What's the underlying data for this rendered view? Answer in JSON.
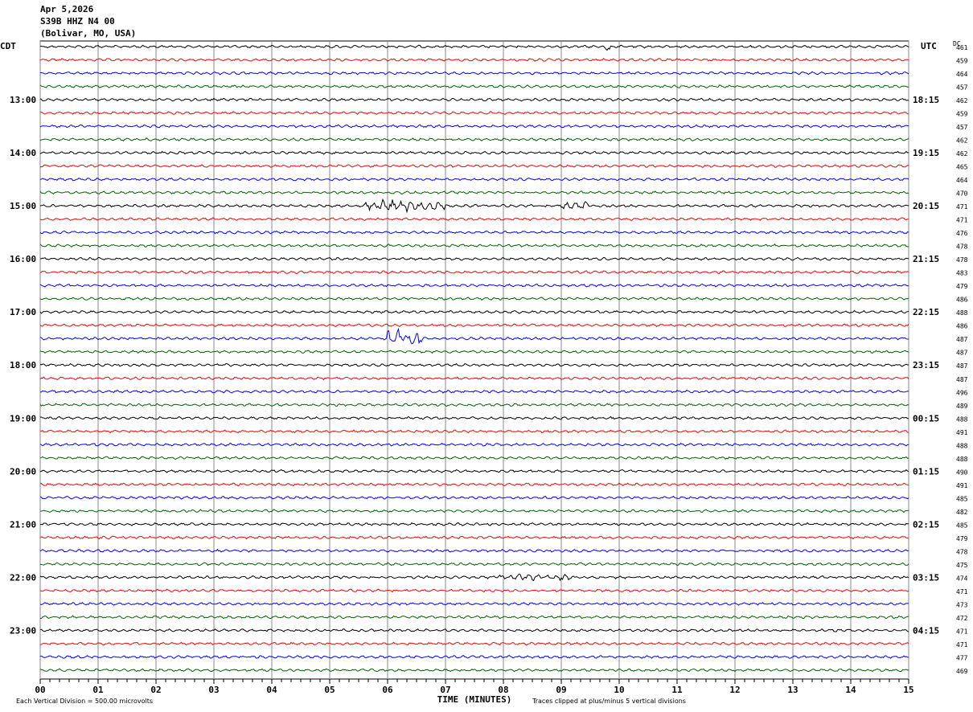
{
  "header": {
    "date": "Apr 5,2026",
    "station": "S39B HHZ N4 00",
    "location": "(Bolivar, MO, USA)"
  },
  "chart_data": {
    "type": "line",
    "subtype": "helicorder",
    "xlabel": "TIME (MINUTES)",
    "xlim": [
      0,
      15
    ],
    "x_ticks": [
      "00",
      "01",
      "02",
      "03",
      "04",
      "05",
      "06",
      "07",
      "08",
      "09",
      "10",
      "11",
      "12",
      "13",
      "14",
      "15"
    ],
    "left_axis_title": "CDT",
    "right_axis_title": "UTC",
    "dc_title": "DC",
    "left_hour_labels": [
      "13:00",
      "14:00",
      "15:00",
      "16:00",
      "17:00",
      "18:00",
      "19:00",
      "20:00",
      "21:00",
      "22:00",
      "23:00"
    ],
    "right_hour_labels": [
      "18:15",
      "19:15",
      "20:15",
      "21:15",
      "22:15",
      "23:15",
      "00:15",
      "01:15",
      "02:15",
      "03:15",
      "04:15"
    ],
    "rows_per_hour": 4,
    "first_labeled_row": 4,
    "trace_colors": [
      "#000000",
      "#ff0000",
      "#0000ff",
      "#006400"
    ],
    "dc_values": [
      461,
      459,
      464,
      457,
      462,
      459,
      457,
      462,
      462,
      465,
      464,
      470,
      471,
      471,
      476,
      478,
      478,
      483,
      479,
      486,
      488,
      486,
      487,
      487,
      487,
      487,
      496,
      489,
      488,
      491,
      488,
      488,
      490,
      491,
      485,
      482,
      485,
      479,
      478,
      475,
      474,
      471,
      473,
      472,
      471,
      471,
      477,
      469
    ],
    "events": [
      {
        "row": 0,
        "start_min": 9.75,
        "end_min": 9.85,
        "amplitude": 0.5
      },
      {
        "row": 12,
        "start_min": 5.6,
        "end_min": 7.0,
        "amplitude": 0.6
      },
      {
        "row": 12,
        "start_min": 9.0,
        "end_min": 9.5,
        "amplitude": 0.4
      },
      {
        "row": 22,
        "start_min": 6.0,
        "end_min": 6.6,
        "amplitude": 1.0
      },
      {
        "row": 40,
        "start_min": 7.8,
        "end_min": 9.2,
        "amplitude": 0.25
      }
    ],
    "scale_note": "Each Vertical Division =  500.00 microvolts",
    "clip_note": "Traces clipped at plus/minus 5 vertical divisions"
  }
}
